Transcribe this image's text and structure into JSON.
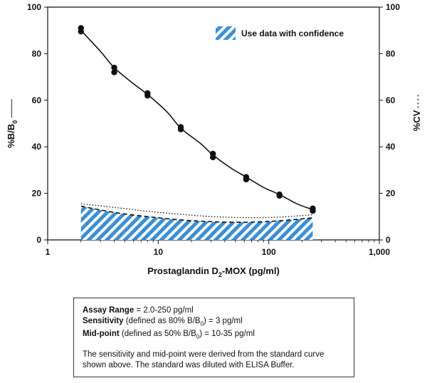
{
  "chart_data": {
    "type": "line",
    "xlabel_main": "Prostaglandin D",
    "xlabel_sub": "2",
    "xlabel_rest": "-MOX (pg/ml)",
    "ylabel_main": "%B/B",
    "ylabel_sub": "0",
    "ylabel_line": "——",
    "y2label": "%CV",
    "y2label_dash": "- - - -",
    "x_scale": "log",
    "xlim": [
      1,
      1000
    ],
    "ylim": [
      0,
      100
    ],
    "y2lim": [
      0,
      100
    ],
    "x_ticks": [
      1,
      10,
      100,
      1000
    ],
    "x_tick_labels": [
      "1",
      "10",
      "100",
      "1,000"
    ],
    "y_ticks": [
      0,
      20,
      40,
      60,
      80,
      100
    ],
    "y_tick_labels": [
      "0",
      "20",
      "40",
      "60",
      "80",
      "100"
    ],
    "y2_tick_labels": [
      "0",
      "20",
      "40",
      "60",
      "80",
      "100"
    ],
    "legend": {
      "label": "Use data with confidence",
      "placement": "top-right"
    },
    "series": [
      {
        "kind": "points",
        "x": [
          2,
          2,
          4,
          4,
          8,
          8,
          16,
          16,
          31.25,
          31.25,
          62.5,
          62.5,
          125,
          125,
          250,
          250
        ],
        "y": [
          91,
          89.5,
          74,
          72,
          63,
          62,
          48.5,
          47.5,
          37,
          35.5,
          27,
          26,
          19.5,
          19,
          13.5,
          12.5
        ]
      },
      {
        "kind": "fit-line",
        "x": [
          2,
          3,
          4,
          6,
          8,
          12,
          16,
          24,
          31.25,
          45,
          62.5,
          90,
          125,
          180,
          250
        ],
        "y": [
          90,
          81,
          74,
          67,
          62.5,
          55,
          48,
          41.5,
          36.5,
          31,
          27,
          22.5,
          19.5,
          15.5,
          13
        ]
      },
      {
        "kind": "cv-dotted",
        "x": [
          2,
          4,
          8,
          16,
          31.25,
          62.5,
          125,
          250
        ],
        "y": [
          15.5,
          14,
          12.3,
          11,
          10,
          9.6,
          9.8,
          10.8
        ]
      },
      {
        "kind": "cv-dashed",
        "x": [
          2,
          4,
          8,
          16,
          31.25,
          62.5,
          125,
          250
        ],
        "y": [
          14.5,
          11.8,
          10,
          8.6,
          7.8,
          7.6,
          8.2,
          9.5
        ]
      }
    ]
  },
  "info": {
    "range_label": "Assay Range",
    "range_value": " = 2.0-250 pg/ml",
    "sensitivity_label": "Sensitivity",
    "sensitivity_pre": " (defined as 80% B/B",
    "sensitivity_sub": "0",
    "sensitivity_post": ") = 3 pg/ml",
    "midpoint_label": "Mid-point",
    "midpoint_pre": " (defined as 50% B/B",
    "midpoint_sub": "0",
    "midpoint_post": ") = 10-35 pg/ml",
    "note": "The sensitivity and mid-point were derived from the standard curve shown above. The standard was diluted with ELISA Buffer."
  },
  "colors": {
    "hatch_blue": "#3a8fd6",
    "ink": "#111111"
  }
}
